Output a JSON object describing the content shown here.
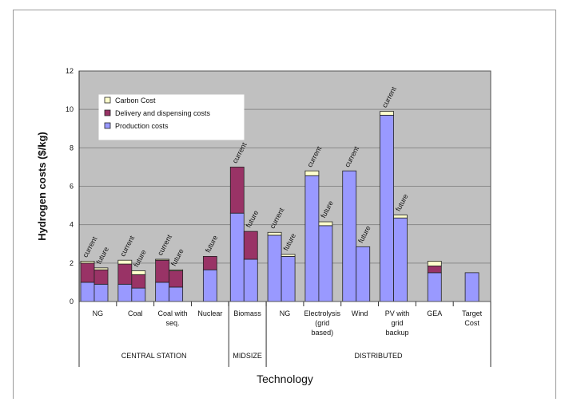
{
  "chart_data": {
    "type": "bar",
    "stacked": true,
    "title": "",
    "xlabel": "Technology",
    "ylabel": "Hydrogen costs ($/kg)",
    "ylim": [
      0,
      12
    ],
    "yticks": [
      0,
      2,
      4,
      6,
      8,
      10,
      12
    ],
    "grid": true,
    "legend_position": "top-left",
    "categories": [
      "NG",
      "Coal",
      "Coal with seq.",
      "Nuclear",
      "Biomass",
      "NG",
      "Electrolysis (grid based)",
      "Wind",
      "PV with grid backup",
      "GEA",
      "Target Cost"
    ],
    "category_lines": [
      [
        "NG"
      ],
      [
        "Coal"
      ],
      [
        "Coal with",
        "seq."
      ],
      [
        "Nuclear"
      ],
      [
        "Biomass"
      ],
      [
        "NG"
      ],
      [
        "Electrolysis",
        "(grid",
        "based)"
      ],
      [
        "Wind"
      ],
      [
        "PV with",
        "grid",
        "backup"
      ],
      [
        "GEA"
      ],
      [
        "Target",
        "Cost"
      ]
    ],
    "groups": [
      {
        "label": "CENTRAL STATION",
        "categories": [
          "NG",
          "Coal",
          "Coal with seq.",
          "Nuclear"
        ]
      },
      {
        "label": "MIDSIZE",
        "categories": [
          "Biomass"
        ]
      },
      {
        "label": "DISTRIBUTED",
        "categories": [
          "NG",
          "Electrolysis (grid based)",
          "Wind",
          "PV with grid backup",
          "GEA",
          "Target Cost"
        ]
      }
    ],
    "series_names": [
      "Carbon Cost",
      "Delivery and dispensing costs",
      "Production costs"
    ],
    "colors": {
      "production": "#9999ff",
      "delivery": "#993366",
      "carbon": "#ffffcc",
      "plot_bg": "#c0c0c0",
      "grid": "#888888"
    },
    "bars": [
      {
        "category_index": 0,
        "label": "current",
        "production": 1.0,
        "delivery": 1.0,
        "carbon": 0.1
      },
      {
        "category_index": 0,
        "label": "future",
        "production": 0.9,
        "delivery": 0.75,
        "carbon": 0.1
      },
      {
        "category_index": 1,
        "label": "current",
        "production": 0.9,
        "delivery": 1.05,
        "carbon": 0.2
      },
      {
        "category_index": 1,
        "label": "future",
        "production": 0.7,
        "delivery": 0.7,
        "carbon": 0.2
      },
      {
        "category_index": 2,
        "label": "current",
        "production": 1.0,
        "delivery": 1.15,
        "carbon": 0.05
      },
      {
        "category_index": 2,
        "label": "future",
        "production": 0.75,
        "delivery": 0.85,
        "carbon": 0.05
      },
      {
        "category_index": 3,
        "label": "future",
        "production": 1.65,
        "delivery": 0.7,
        "carbon": 0.0
      },
      {
        "category_index": 4,
        "label": "current",
        "production": 4.6,
        "delivery": 2.4,
        "carbon": 0.0
      },
      {
        "category_index": 4,
        "label": "future",
        "production": 2.2,
        "delivery": 1.45,
        "carbon": 0.0
      },
      {
        "category_index": 5,
        "label": "current",
        "production": 3.45,
        "delivery": 0.0,
        "carbon": 0.15
      },
      {
        "category_index": 5,
        "label": "future",
        "production": 2.35,
        "delivery": 0.0,
        "carbon": 0.1
      },
      {
        "category_index": 6,
        "label": "current",
        "production": 6.55,
        "delivery": 0.0,
        "carbon": 0.25
      },
      {
        "category_index": 6,
        "label": "future",
        "production": 3.95,
        "delivery": 0.0,
        "carbon": 0.2
      },
      {
        "category_index": 7,
        "label": "current",
        "production": 6.8,
        "delivery": 0.0,
        "carbon": 0.0
      },
      {
        "category_index": 7,
        "label": "future",
        "production": 2.85,
        "delivery": 0.0,
        "carbon": 0.0
      },
      {
        "category_index": 8,
        "label": "current",
        "production": 9.7,
        "delivery": 0.0,
        "carbon": 0.2
      },
      {
        "category_index": 8,
        "label": "future",
        "production": 4.35,
        "delivery": 0.0,
        "carbon": 0.15
      },
      {
        "category_index": 9,
        "label": "",
        "production": 1.5,
        "delivery": 0.35,
        "carbon": 0.25
      },
      {
        "category_index": 10,
        "label": "",
        "production": 1.5,
        "delivery": 0.0,
        "carbon": 0.0
      }
    ]
  }
}
